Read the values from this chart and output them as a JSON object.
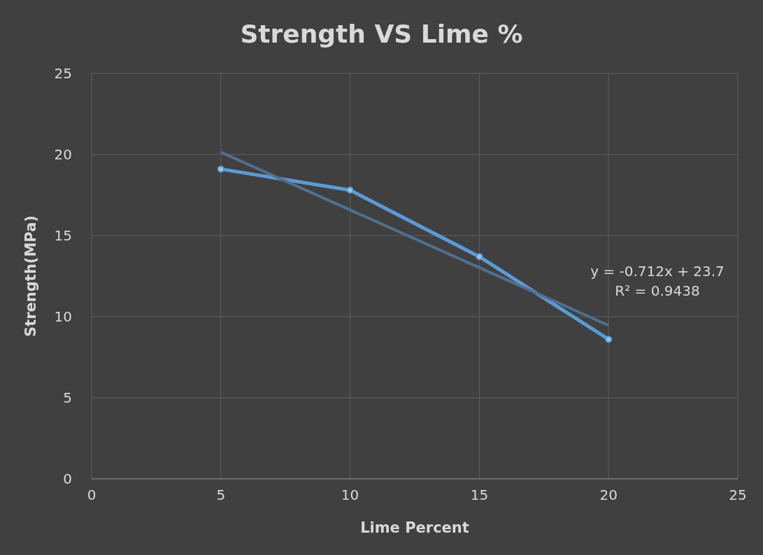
{
  "chart_data": {
    "type": "line",
    "title": "Strength VS Lime %",
    "xlabel": "Lime Percent",
    "ylabel": "Strength(MPa)",
    "x": [
      5,
      10,
      15,
      20
    ],
    "series": [
      {
        "color": "#5b9bd5",
        "values": [
          19.1,
          17.8,
          13.7,
          8.6
        ],
        "marker": "circle"
      },
      {
        "type": "line",
        "color": "#50708f",
        "x": [
          5,
          20
        ],
        "values": [
          20.14,
          9.46
        ],
        "marker": "none"
      }
    ],
    "xlim": [
      0,
      25
    ],
    "xticks": [
      0,
      5,
      10,
      15,
      20,
      25
    ],
    "ylim": [
      0,
      25
    ],
    "yticks": [
      0,
      5,
      10,
      15,
      20,
      25
    ],
    "grid": true,
    "annotations": [
      "y = -0.712x + 23.7",
      "R² = 0.9438"
    ]
  }
}
